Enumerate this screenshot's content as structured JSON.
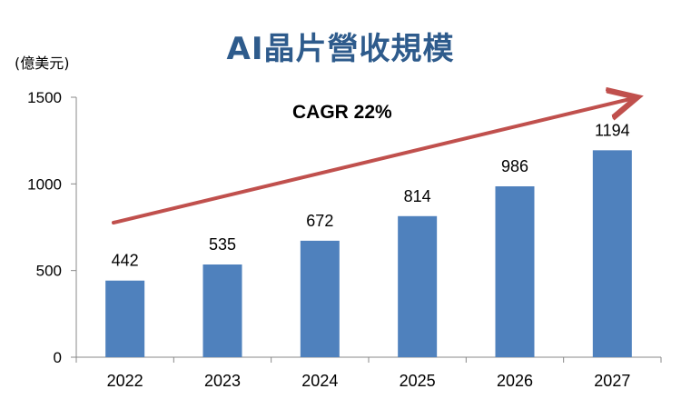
{
  "chart_data": {
    "type": "bar",
    "title": "AI晶片營收規模",
    "unit_label": "(億美元)",
    "categories": [
      "2022",
      "2023",
      "2024",
      "2025",
      "2026",
      "2027"
    ],
    "values": [
      442,
      535,
      672,
      814,
      986,
      1194
    ],
    "ylim": [
      0,
      1500
    ],
    "yticks": [
      0,
      500,
      1000,
      1500
    ],
    "annotation": "CAGR 22%",
    "grid": false,
    "legend": "none",
    "colors": {
      "bar": "#4f81bd",
      "arrow": "#c0504d",
      "title": "#2e5b8c"
    }
  }
}
